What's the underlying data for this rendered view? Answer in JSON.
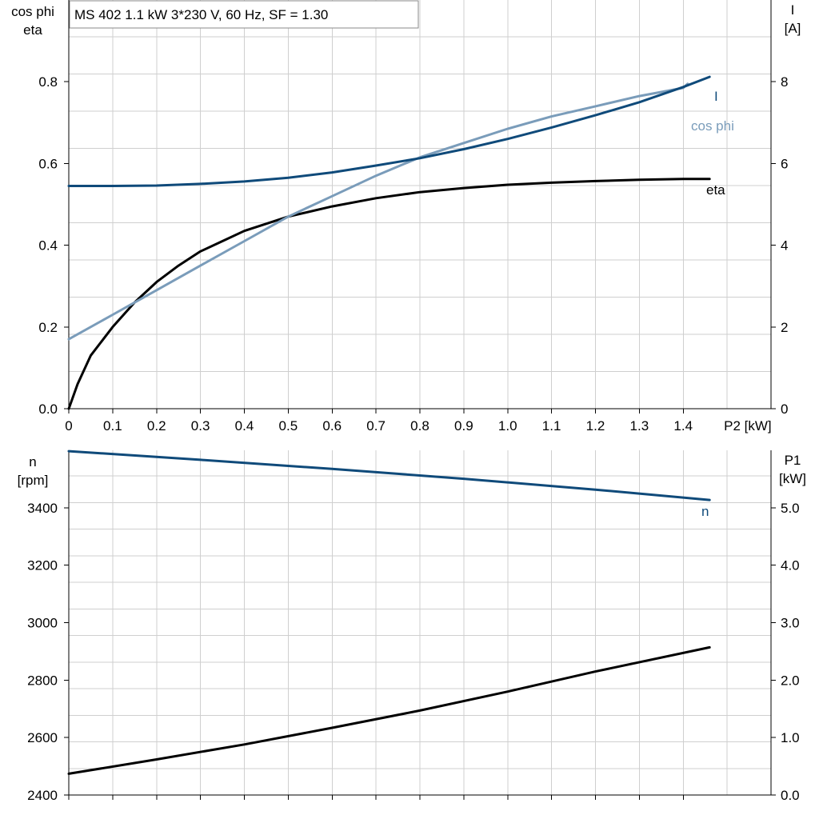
{
  "chart_data": [
    {
      "type": "line",
      "title": "MS 402   1.1 kW   3*230 V, 60 Hz, SF = 1.30",
      "xlabel": "P2 [kW]",
      "xlim": [
        0,
        1.6
      ],
      "xticks": [
        0,
        0.1,
        0.2,
        0.3,
        0.4,
        0.5,
        0.6,
        0.7,
        0.8,
        0.9,
        1.0,
        1.1,
        1.2,
        1.3,
        1.4
      ],
      "xtick_labels": [
        "0",
        "0.1",
        "0.2",
        "0.3",
        "0.4",
        "0.5",
        "0.6",
        "0.7",
        "0.8",
        "0.9",
        "1.0",
        "1.1",
        "1.2",
        "1.3",
        "1.4"
      ],
      "ylabel_left": [
        "cos phi",
        "eta"
      ],
      "ylim_left": [
        0,
        1.0
      ],
      "yticks_left": [
        0.0,
        0.2,
        0.4,
        0.6,
        0.8
      ],
      "ytick_labels_left": [
        "0.0",
        "0.2",
        "0.4",
        "0.6",
        "0.8"
      ],
      "ylabel_right": [
        "I",
        "[A]"
      ],
      "ylim_right": [
        0,
        10
      ],
      "yticks_right": [
        0,
        2,
        4,
        6,
        8
      ],
      "ytick_labels_right": [
        "0",
        "2",
        "4",
        "6",
        "8"
      ],
      "grid": true,
      "series": [
        {
          "name": "eta",
          "axis": "left",
          "color": "#000000",
          "points": [
            [
              0,
              0.0
            ],
            [
              0.02,
              0.06
            ],
            [
              0.05,
              0.13
            ],
            [
              0.1,
              0.2
            ],
            [
              0.15,
              0.26
            ],
            [
              0.2,
              0.31
            ],
            [
              0.25,
              0.35
            ],
            [
              0.3,
              0.385
            ],
            [
              0.35,
              0.41
            ],
            [
              0.4,
              0.435
            ],
            [
              0.5,
              0.47
            ],
            [
              0.6,
              0.495
            ],
            [
              0.7,
              0.515
            ],
            [
              0.8,
              0.53
            ],
            [
              0.9,
              0.54
            ],
            [
              1.0,
              0.548
            ],
            [
              1.1,
              0.553
            ],
            [
              1.2,
              0.557
            ],
            [
              1.3,
              0.56
            ],
            [
              1.4,
              0.562
            ],
            [
              1.46,
              0.562
            ]
          ]
        },
        {
          "name": "cos phi",
          "axis": "left",
          "color": "#7a9cba",
          "points": [
            [
              0,
              0.17
            ],
            [
              0.1,
              0.23
            ],
            [
              0.2,
              0.29
            ],
            [
              0.3,
              0.35
            ],
            [
              0.4,
              0.41
            ],
            [
              0.5,
              0.47
            ],
            [
              0.6,
              0.52
            ],
            [
              0.7,
              0.57
            ],
            [
              0.8,
              0.615
            ],
            [
              0.9,
              0.65
            ],
            [
              1.0,
              0.685
            ],
            [
              1.1,
              0.715
            ],
            [
              1.2,
              0.74
            ],
            [
              1.3,
              0.765
            ],
            [
              1.4,
              0.785
            ],
            [
              1.41,
              0.795
            ]
          ]
        },
        {
          "name": "I",
          "axis": "right",
          "color": "#0f4a7a",
          "points": [
            [
              0,
              5.45
            ],
            [
              0.1,
              5.45
            ],
            [
              0.2,
              5.46
            ],
            [
              0.3,
              5.5
            ],
            [
              0.4,
              5.56
            ],
            [
              0.5,
              5.65
            ],
            [
              0.6,
              5.78
            ],
            [
              0.7,
              5.95
            ],
            [
              0.8,
              6.13
            ],
            [
              0.9,
              6.35
            ],
            [
              1.0,
              6.6
            ],
            [
              1.1,
              6.88
            ],
            [
              1.2,
              7.18
            ],
            [
              1.3,
              7.5
            ],
            [
              1.4,
              7.87
            ],
            [
              1.46,
              8.12
            ]
          ]
        }
      ]
    },
    {
      "type": "line",
      "xlim": [
        0,
        1.6
      ],
      "ylabel_left": [
        "n",
        "[rpm]"
      ],
      "ylim_left": [
        2400,
        3600
      ],
      "yticks_left": [
        2400,
        2600,
        2800,
        3000,
        3200,
        3400
      ],
      "ytick_labels_left": [
        "2400",
        "2600",
        "2800",
        "3000",
        "3200",
        "3400"
      ],
      "ylabel_right": [
        "P1",
        "[kW]"
      ],
      "ylim_right": [
        0,
        6.0
      ],
      "yticks_right": [
        0,
        1,
        2,
        3,
        4,
        5
      ],
      "ytick_labels_right": [
        "0.0",
        "1.0",
        "2.0",
        "3.0",
        "4.0",
        "5.0"
      ],
      "grid": true,
      "series": [
        {
          "name": "n",
          "axis": "left",
          "color": "#0f4a7a",
          "points": [
            [
              0,
              3597
            ],
            [
              0.3,
              3567
            ],
            [
              0.6,
              3535
            ],
            [
              0.9,
              3501
            ],
            [
              1.2,
              3463
            ],
            [
              1.46,
              3427
            ]
          ]
        },
        {
          "axis": "right",
          "color": "#000000",
          "points": [
            [
              0,
              0.37
            ],
            [
              0.2,
              0.62
            ],
            [
              0.4,
              0.88
            ],
            [
              0.6,
              1.17
            ],
            [
              0.8,
              1.47
            ],
            [
              1.0,
              1.8
            ],
            [
              1.2,
              2.15
            ],
            [
              1.46,
              2.57
            ]
          ]
        }
      ]
    }
  ]
}
